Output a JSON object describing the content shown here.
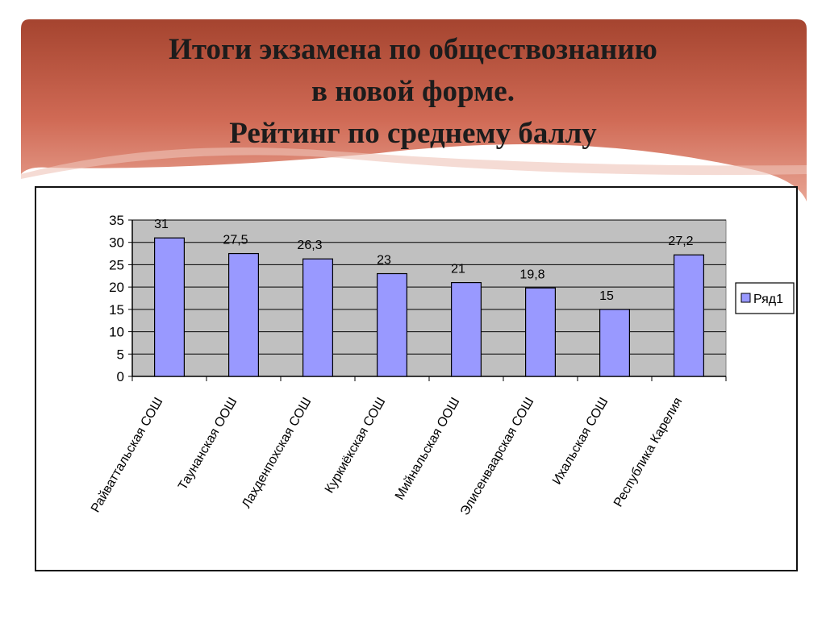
{
  "slide": {
    "title_lines": [
      "Итоги экзамена по обществознанию",
      "в новой форме.",
      "Рейтинг по среднему баллу"
    ]
  },
  "chart_data": {
    "type": "bar",
    "categories": [
      "Райваттальская СОШ",
      "Таунанская ООШ",
      "Лахденпохская СОШ",
      "Куркиёкская СОШ",
      "Мийнальская ООШ",
      "Элисенваарская СОШ",
      "Ихальская СОШ",
      "Республика Карелия"
    ],
    "series": [
      {
        "name": "Ряд1",
        "values": [
          31,
          27.5,
          26.3,
          23,
          21,
          19.8,
          15,
          27.2
        ]
      }
    ],
    "data_labels": [
      "31",
      "27,5",
      "26,3",
      "23",
      "21",
      "19,8",
      "15",
      "27,2"
    ],
    "yticks": [
      0,
      5,
      10,
      15,
      20,
      25,
      30,
      35
    ],
    "ylim": [
      0,
      35
    ],
    "legend": "right",
    "grid": true,
    "colors": {
      "bar": "#9999ff",
      "plot_bg": "#c0c0c0",
      "axis": "#000000",
      "grid": "#000000"
    }
  }
}
